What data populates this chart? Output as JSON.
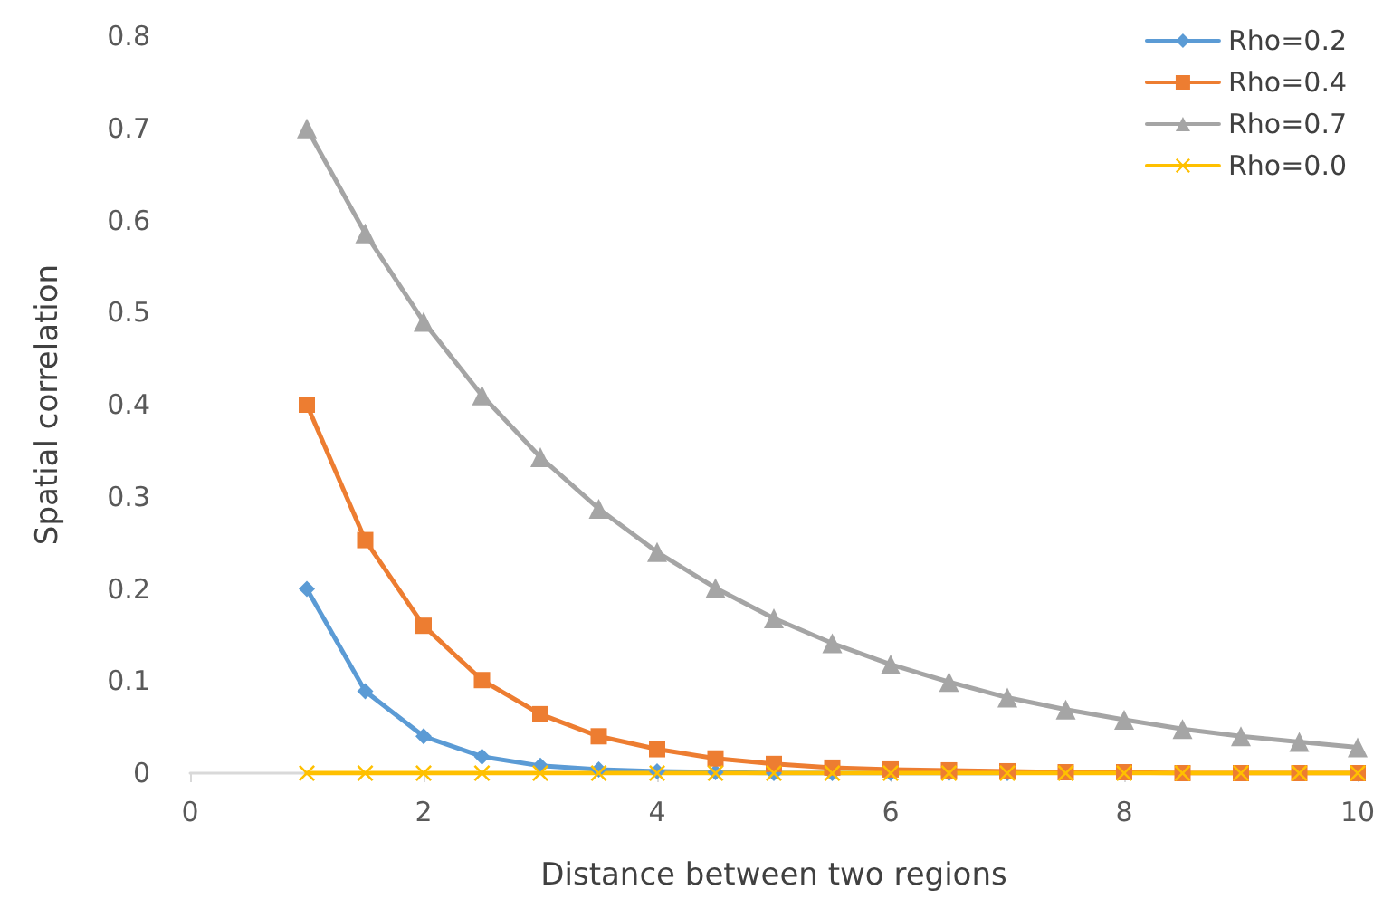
{
  "chart_data": {
    "type": "line",
    "xlabel": "Distance between two regions",
    "ylabel": "Spatial correlation",
    "x": [
      1,
      1.5,
      2,
      2.5,
      3,
      3.5,
      4,
      4.5,
      5,
      5.5,
      6,
      6.5,
      7,
      7.5,
      8,
      8.5,
      9,
      9.5,
      10
    ],
    "series": [
      {
        "name": "Rho=0.2",
        "color": "#5b9bd5",
        "marker": "diamond",
        "values": [
          0.2,
          0.089,
          0.04,
          0.018,
          0.008,
          0.004,
          0.002,
          0.001,
          0,
          0,
          0,
          0,
          0,
          null,
          null,
          null,
          null,
          null,
          null
        ]
      },
      {
        "name": "Rho=0.4",
        "color": "#ed7d31",
        "marker": "square",
        "values": [
          0.4,
          0.253,
          0.16,
          0.101,
          0.064,
          0.04,
          0.026,
          0.016,
          0.01,
          0.006,
          0.004,
          0.003,
          0.002,
          0.001,
          0.001,
          0,
          0,
          0,
          0
        ]
      },
      {
        "name": "Rho=0.7",
        "color": "#a5a5a5",
        "marker": "triangle",
        "values": [
          0.7,
          0.586,
          0.49,
          0.41,
          0.343,
          0.287,
          0.24,
          0.201,
          0.168,
          0.141,
          0.118,
          0.099,
          0.082,
          0.069,
          0.058,
          0.048,
          0.04,
          0.034,
          0.028
        ]
      },
      {
        "name": "Rho=0.0",
        "color": "#ffc000",
        "marker": "cross",
        "values": [
          0,
          0,
          0,
          0,
          0,
          0,
          0,
          0,
          0,
          0,
          0,
          0,
          0,
          0,
          0,
          0,
          0,
          0,
          0
        ]
      }
    ],
    "xlim": [
      0,
      10
    ],
    "xticks": [
      0,
      2,
      4,
      6,
      8,
      10
    ],
    "ylim": [
      0,
      0.8
    ],
    "yticks": [
      0,
      0.1,
      0.2,
      0.3,
      0.4,
      0.5,
      0.6,
      0.7,
      0.8
    ],
    "grid": false,
    "legend": "top right",
    "line_style": "solid"
  }
}
